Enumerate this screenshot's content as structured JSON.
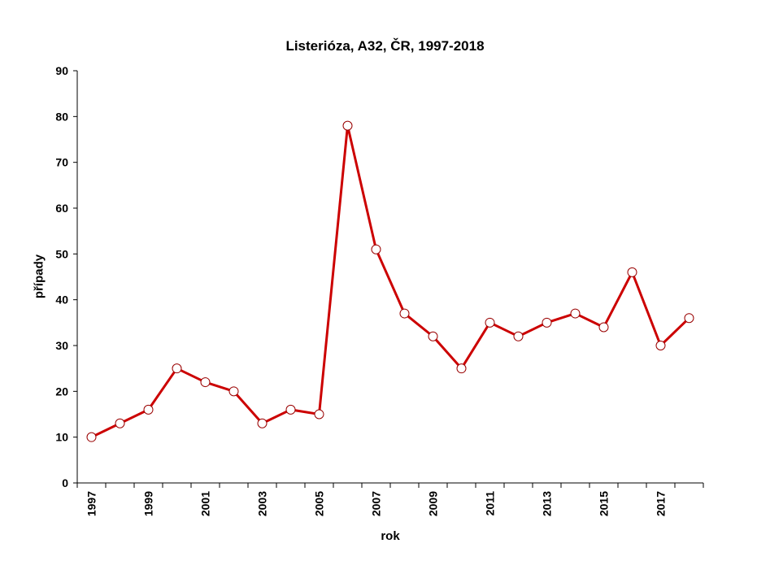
{
  "chart_data": {
    "type": "line",
    "title": "Listerióza, A32, ČR, 1997-2018",
    "xlabel": "rok",
    "ylabel": "případy",
    "ylim": [
      0,
      90
    ],
    "yticks": [
      0,
      10,
      20,
      30,
      40,
      50,
      60,
      70,
      80,
      90
    ],
    "categories": [
      "1997",
      "1998",
      "1999",
      "2000",
      "2001",
      "2002",
      "2003",
      "2004",
      "2005",
      "2006",
      "2007",
      "2008",
      "2009",
      "2010",
      "2011",
      "2012",
      "2013",
      "2014",
      "2015",
      "2016",
      "2017",
      "2018"
    ],
    "xtick_labels_shown": [
      "1997",
      "1999",
      "2001",
      "2003",
      "2005",
      "2007",
      "2009",
      "2011",
      "2013",
      "2015",
      "2017"
    ],
    "series": [
      {
        "name": "případy",
        "color": "#cc0000",
        "marker": "open-circle",
        "values": [
          10,
          13,
          16,
          25,
          22,
          20,
          13,
          16,
          15,
          78,
          51,
          37,
          32,
          25,
          35,
          32,
          35,
          37,
          34,
          46,
          30,
          36
        ]
      }
    ],
    "grid": false,
    "legend": null
  }
}
